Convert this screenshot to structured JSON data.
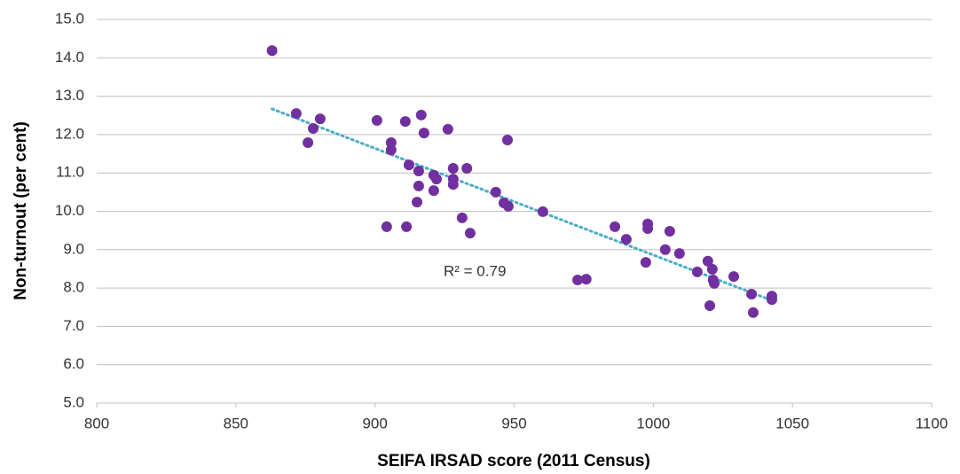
{
  "chart_data": {
    "type": "scatter",
    "x_label": "SEIFA IRSAD score (2011 Census)",
    "y_label": "Non-turnout (per cent)",
    "annotation": "R² = 0.79",
    "color": "#70309f",
    "trendline_color": "#4bacc6",
    "grid": true,
    "xlim": [
      800,
      1100
    ],
    "xticks": [
      800,
      850,
      900,
      950,
      1000,
      1050,
      1100
    ],
    "ylim": [
      5,
      15
    ],
    "yticks": [
      {
        "value": 5,
        "label": "5.0"
      },
      {
        "value": 6,
        "label": "6.0"
      },
      {
        "value": 7,
        "label": "7.0"
      },
      {
        "value": 8,
        "label": "8.0"
      },
      {
        "value": 9,
        "label": "9.0"
      },
      {
        "value": 10,
        "label": "10.0"
      },
      {
        "value": 11,
        "label": "11.0"
      },
      {
        "value": 12,
        "label": "12.0"
      },
      {
        "value": 13,
        "label": "13.0"
      },
      {
        "value": 14,
        "label": "14.0"
      },
      {
        "value": 15,
        "label": "15.0"
      }
    ],
    "x": [
      863,
      871.7,
      877.8,
      880.3,
      875.9,
      900.7,
      910.9,
      916.6,
      917.6,
      905.8,
      905.8,
      912.2,
      915.7,
      921.1,
      922.1,
      928.1,
      933,
      928.1,
      928.1,
      915.7,
      921.1,
      915.1,
      926.2,
      947.6,
      943.4,
      946.3,
      947.9,
      960.3,
      904.2,
      911.3,
      931.3,
      934.2,
      972.8,
      975.9,
      986.2,
      990.3,
      998,
      998,
      1005.9,
      997.3,
      1004.3,
      1009.4,
      1015.8,
      1019.6,
      1021.2,
      1021.5,
      1021.9,
      1028.9,
      1035.3,
      1020.3,
      1035.9,
      1042.6,
      1042.6
    ],
    "y": [
      14.19,
      12.55,
      12.16,
      12.41,
      11.79,
      12.37,
      12.34,
      12.51,
      12.04,
      11.79,
      11.6,
      11.21,
      11.05,
      10.94,
      10.84,
      11.12,
      11.12,
      10.84,
      10.7,
      10.66,
      10.54,
      10.24,
      12.14,
      11.86,
      10.5,
      10.22,
      10.13,
      9.99,
      9.6,
      9.6,
      9.83,
      9.43,
      8.21,
      8.23,
      9.6,
      9.27,
      9.67,
      9.55,
      9.48,
      8.67,
      9,
      8.9,
      8.42,
      8.7,
      8.49,
      8.21,
      8.12,
      8.3,
      7.84,
      7.54,
      7.36,
      7.79,
      7.7
    ]
  }
}
